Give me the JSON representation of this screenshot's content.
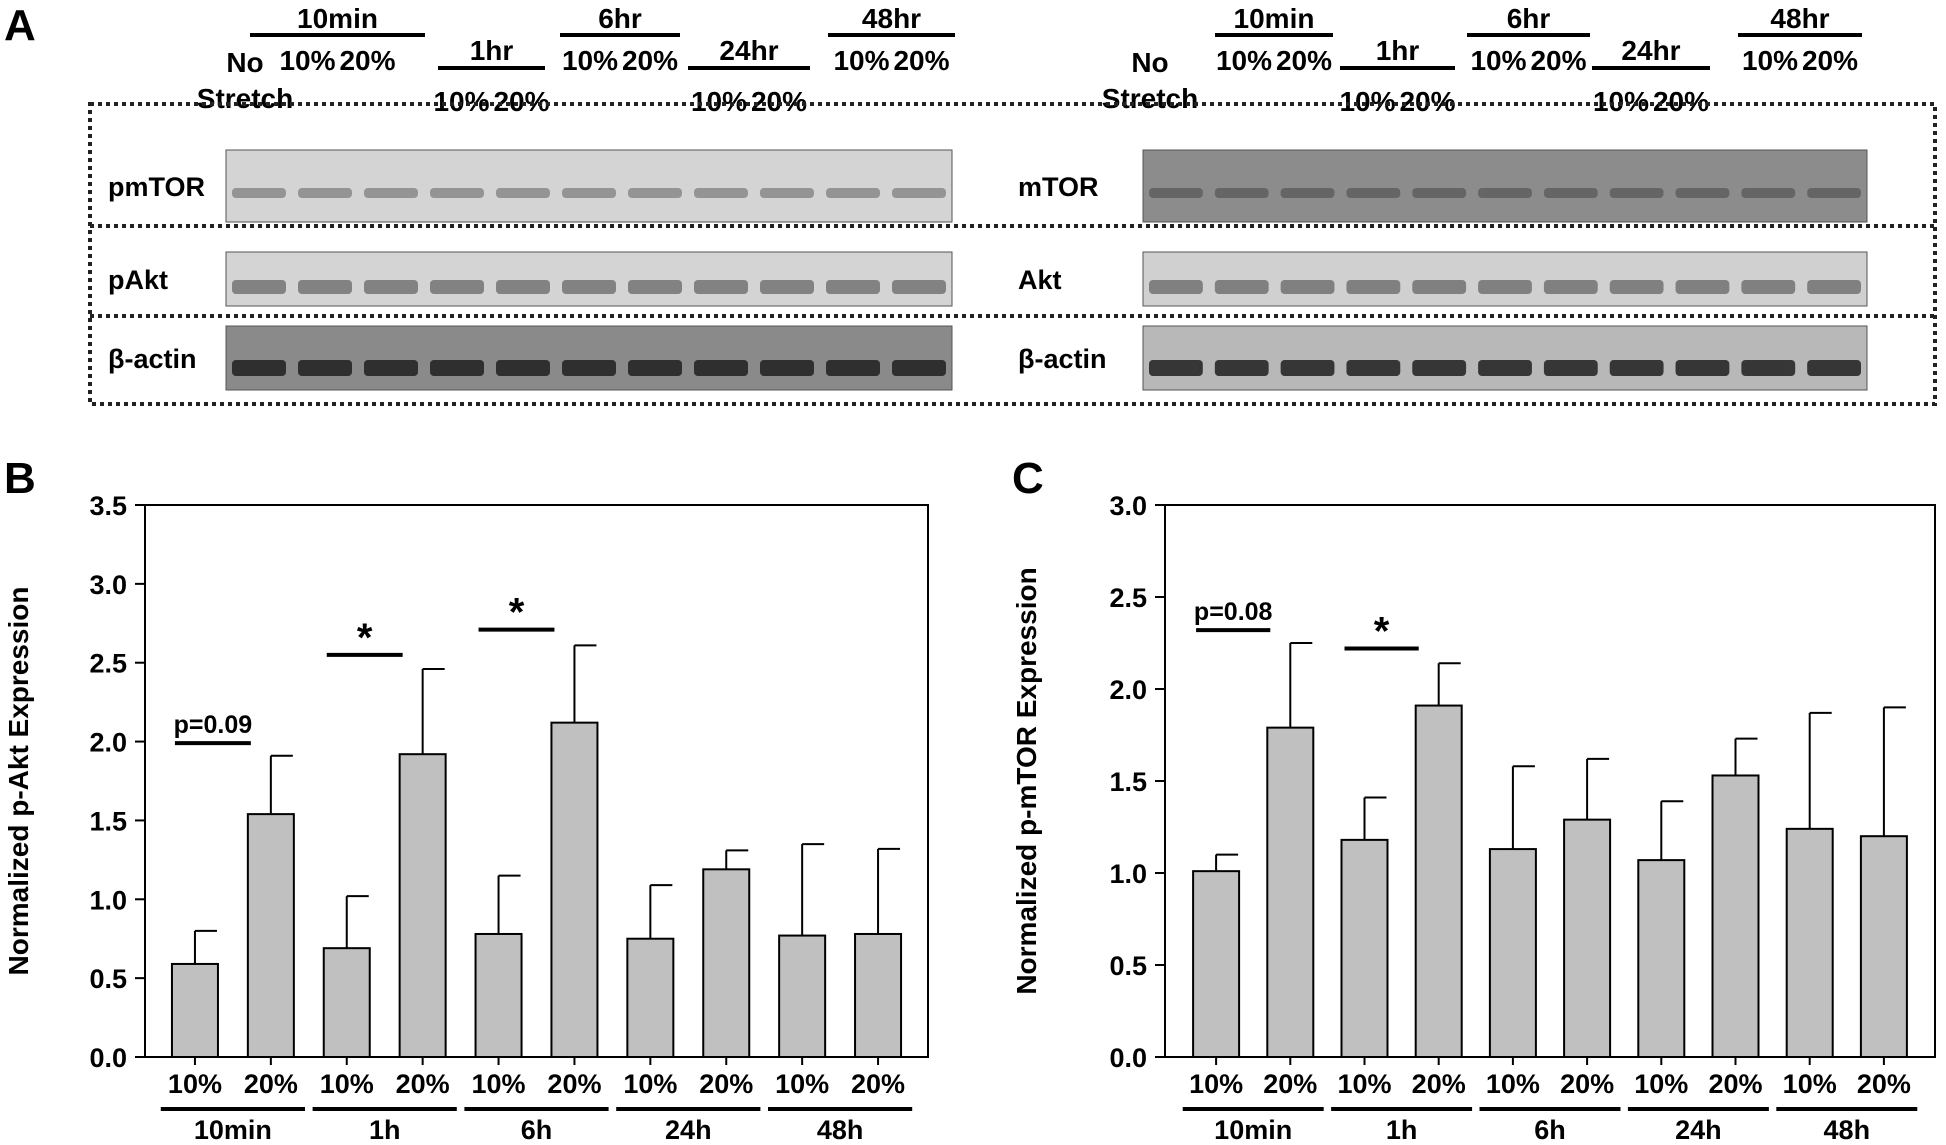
{
  "panel_a": {
    "letter": "A",
    "no_stretch_lines": [
      "No",
      "Stretch"
    ],
    "time_labels": [
      "10min",
      "1hr",
      "6hr",
      "24hr",
      "48hr"
    ],
    "strain_labels": [
      "10%",
      "20%"
    ],
    "left_blot_labels": [
      "pmTOR",
      "pAkt",
      "β-actin"
    ],
    "right_blot_labels": [
      "mTOR",
      "Akt",
      "β-actin"
    ]
  },
  "chart_data": [
    {
      "type": "bar",
      "panel": "B",
      "categories": [
        "10%",
        "20%",
        "10%",
        "20%",
        "10%",
        "20%",
        "10%",
        "20%",
        "10%",
        "20%"
      ],
      "groups": [
        "10min",
        "1h",
        "6h",
        "24h",
        "48h"
      ],
      "values": [
        0.59,
        1.54,
        0.69,
        1.92,
        0.78,
        2.12,
        0.75,
        1.19,
        0.77,
        0.78
      ],
      "error_upper": [
        0.8,
        1.91,
        1.02,
        2.46,
        1.15,
        2.61,
        1.09,
        1.31,
        1.35,
        1.32
      ],
      "ylabel": "Normalized p-Akt Expression",
      "ylim": [
        0,
        3.5
      ],
      "yticks": [
        "0.0",
        "0.5",
        "1.0",
        "1.5",
        "2.0",
        "2.5",
        "3.0",
        "3.5"
      ],
      "annotations": [
        {
          "text": "p=0.09",
          "from": 0,
          "to": 1,
          "y": 1.99
        },
        {
          "text": "*",
          "from": 2,
          "to": 3,
          "y": 2.55
        },
        {
          "text": "*",
          "from": 4,
          "to": 5,
          "y": 2.71
        }
      ],
      "bar_color": "#c0c0c0"
    },
    {
      "type": "bar",
      "panel": "C",
      "categories": [
        "10%",
        "20%",
        "10%",
        "20%",
        "10%",
        "20%",
        "10%",
        "20%",
        "10%",
        "20%"
      ],
      "groups": [
        "10min",
        "1h",
        "6h",
        "24h",
        "48h"
      ],
      "values": [
        1.01,
        1.79,
        1.18,
        1.91,
        1.13,
        1.29,
        1.07,
        1.53,
        1.24,
        1.2
      ],
      "error_upper": [
        1.1,
        2.25,
        1.41,
        2.14,
        1.58,
        1.62,
        1.39,
        1.73,
        1.87,
        1.9
      ],
      "ylabel": "Normalized p-mTOR Expression",
      "ylim": [
        0,
        3.0
      ],
      "yticks": [
        "0.0",
        "0.5",
        "1.0",
        "1.5",
        "2.0",
        "2.5",
        "3.0"
      ],
      "annotations": [
        {
          "text": "p=0.08",
          "from": 0,
          "to": 1,
          "y": 2.32
        },
        {
          "text": "*",
          "from": 2,
          "to": 3,
          "y": 2.22
        }
      ],
      "bar_color": "#c0c0c0"
    }
  ]
}
